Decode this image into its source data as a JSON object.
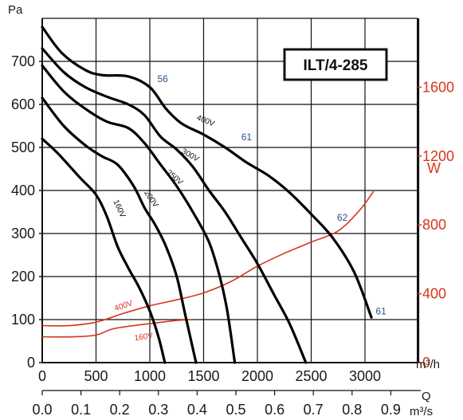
{
  "chart_data": {
    "type": "line",
    "title": "ILT/4-285",
    "x_axis": {
      "unit_top": "m³/h",
      "label": "Q",
      "unit_bottom": "m³/s",
      "range_m3h": [
        0,
        3500
      ],
      "ticks_m3h": [
        "0",
        "500",
        "1000",
        "1500",
        "2000",
        "2500",
        "3000"
      ],
      "ticks_m3s": [
        "0.0",
        "0.1",
        "0.2",
        "0.3",
        "0.4",
        "0.5",
        "0.6",
        "0.7",
        "0.8",
        "0.9"
      ]
    },
    "y_left": {
      "unit": "Pa",
      "range": [
        0,
        800
      ],
      "ticks": [
        "0",
        "100",
        "200",
        "300",
        "400",
        "500",
        "600",
        "700"
      ]
    },
    "y_right": {
      "unit": "W",
      "range": [
        0,
        2000
      ],
      "ticks": [
        "0",
        "400",
        "800",
        "1200",
        "1600"
      ],
      "color": "#d9341f"
    },
    "grid": true,
    "pressure_series": [
      {
        "name": "400V",
        "points": [
          [
            0,
            780
          ],
          [
            180,
            720
          ],
          [
            400,
            680
          ],
          [
            560,
            668
          ],
          [
            800,
            665
          ],
          [
            1000,
            640
          ],
          [
            1150,
            590
          ],
          [
            1300,
            555
          ],
          [
            1500,
            530
          ],
          [
            1700,
            500
          ],
          [
            1900,
            465
          ],
          [
            2100,
            435
          ],
          [
            2300,
            395
          ],
          [
            2500,
            345
          ],
          [
            2700,
            290
          ],
          [
            2900,
            210
          ],
          [
            3060,
            105
          ]
        ]
      },
      {
        "name": "300V",
        "points": [
          [
            0,
            730
          ],
          [
            200,
            675
          ],
          [
            400,
            640
          ],
          [
            600,
            618
          ],
          [
            800,
            600
          ],
          [
            950,
            575
          ],
          [
            1100,
            525
          ],
          [
            1250,
            495
          ],
          [
            1400,
            455
          ],
          [
            1550,
            400
          ],
          [
            1700,
            350
          ],
          [
            1850,
            290
          ],
          [
            2000,
            230
          ],
          [
            2150,
            160
          ],
          [
            2300,
            90
          ],
          [
            2450,
            0
          ]
        ]
      },
      {
        "name": "250V",
        "points": [
          [
            0,
            690
          ],
          [
            200,
            630
          ],
          [
            400,
            590
          ],
          [
            600,
            560
          ],
          [
            800,
            545
          ],
          [
            950,
            510
          ],
          [
            1100,
            460
          ],
          [
            1250,
            410
          ],
          [
            1400,
            350
          ],
          [
            1550,
            280
          ],
          [
            1650,
            200
          ],
          [
            1720,
            120
          ],
          [
            1790,
            0
          ]
        ]
      },
      {
        "name": "200V",
        "points": [
          [
            0,
            615
          ],
          [
            200,
            550
          ],
          [
            400,
            505
          ],
          [
            550,
            480
          ],
          [
            700,
            460
          ],
          [
            850,
            410
          ],
          [
            950,
            360
          ],
          [
            1050,
            320
          ],
          [
            1150,
            270
          ],
          [
            1250,
            200
          ],
          [
            1330,
            110
          ],
          [
            1430,
            0
          ]
        ]
      },
      {
        "name": "160V",
        "points": [
          [
            0,
            520
          ],
          [
            150,
            485
          ],
          [
            350,
            430
          ],
          [
            500,
            390
          ],
          [
            600,
            340
          ],
          [
            700,
            270
          ],
          [
            800,
            220
          ],
          [
            900,
            175
          ],
          [
            1000,
            120
          ],
          [
            1080,
            60
          ],
          [
            1140,
            0
          ]
        ]
      }
    ],
    "power_series": [
      {
        "name": "400V",
        "points_W": [
          [
            0,
            215
          ],
          [
            250,
            215
          ],
          [
            500,
            235
          ],
          [
            750,
            285
          ],
          [
            1000,
            330
          ],
          [
            1250,
            365
          ],
          [
            1500,
            405
          ],
          [
            1750,
            470
          ],
          [
            2000,
            560
          ],
          [
            2250,
            635
          ],
          [
            2500,
            700
          ],
          [
            2750,
            765
          ],
          [
            2950,
            885
          ],
          [
            3080,
            995
          ]
        ]
      },
      {
        "name": "160V",
        "points_W": [
          [
            0,
            150
          ],
          [
            300,
            150
          ],
          [
            500,
            160
          ],
          [
            650,
            195
          ],
          [
            850,
            215
          ],
          [
            1050,
            230
          ],
          [
            1250,
            245
          ],
          [
            1400,
            250
          ]
        ]
      }
    ],
    "efficiency_labels": [
      {
        "text": "56",
        "at": [
          1070,
          652
        ]
      },
      {
        "text": "61",
        "at": [
          1850,
          517
        ]
      },
      {
        "text": "62",
        "at": [
          2740,
          330
        ]
      },
      {
        "text": "61",
        "at": [
          3100,
          112
        ]
      }
    ],
    "pressure_label_positions": [
      {
        "name": "400V",
        "at": [
          1430,
          565
        ]
      },
      {
        "name": "300V",
        "at": [
          1290,
          488
        ]
      },
      {
        "name": "250V",
        "at": [
          1150,
          440
        ]
      },
      {
        "name": "200V",
        "at": [
          945,
          395
        ]
      },
      {
        "name": "160V",
        "at": [
          660,
          375
        ]
      }
    ],
    "power_label_positions": [
      {
        "name": "400V",
        "at": [
          680,
          300
        ]
      },
      {
        "name": "160V",
        "at": [
          860,
          128
        ]
      }
    ]
  }
}
